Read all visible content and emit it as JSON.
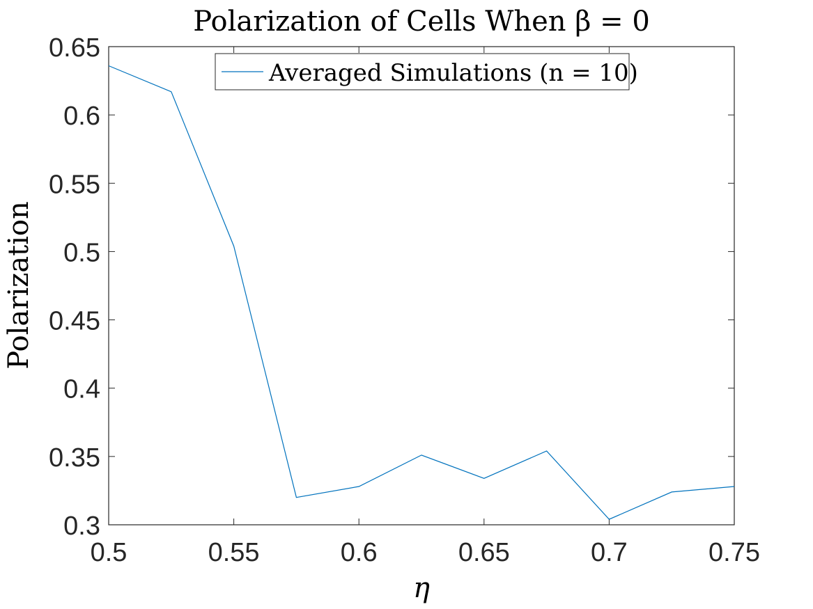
{
  "chart_data": {
    "type": "line",
    "title": "Polarization of Cells When β = 0",
    "xlabel": "η",
    "ylabel": "Polarization",
    "xlim": [
      0.5,
      0.75
    ],
    "ylim": [
      0.3,
      0.65
    ],
    "x_ticks": [
      "0.5",
      "0.55",
      "0.6",
      "0.65",
      "0.7",
      "0.75"
    ],
    "y_ticks": [
      "0.3",
      "0.35",
      "0.4",
      "0.45",
      "0.5",
      "0.55",
      "0.6",
      "0.65"
    ],
    "grid": false,
    "legend_position": "top-center",
    "series": [
      {
        "name": "Averaged Simulations (n = 10)",
        "color": "#0072BD",
        "x": [
          0.5,
          0.525,
          0.55,
          0.575,
          0.6,
          0.625,
          0.65,
          0.675,
          0.7,
          0.725,
          0.75
        ],
        "y": [
          0.636,
          0.617,
          0.504,
          0.32,
          0.328,
          0.351,
          0.334,
          0.354,
          0.304,
          0.324,
          0.328
        ]
      }
    ]
  }
}
